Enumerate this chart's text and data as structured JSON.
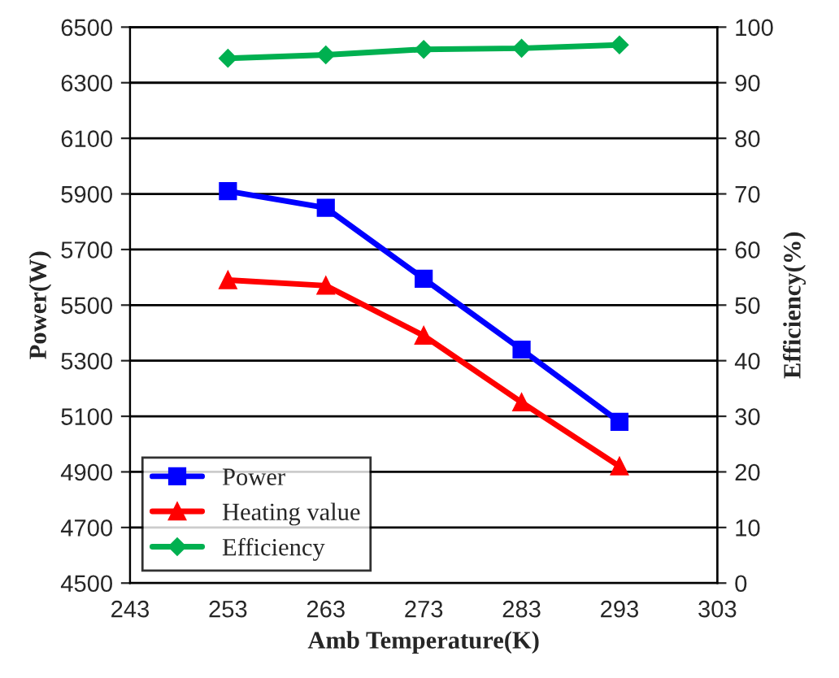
{
  "chart_data": {
    "type": "line",
    "xlabel": "Amb Temperature(K)",
    "ylabel": "Power(W)",
    "y2label": "Efficiency(%)",
    "x": [
      253,
      263,
      273,
      283,
      293
    ],
    "xlim": [
      243,
      303
    ],
    "xticks": [
      243,
      253,
      263,
      273,
      283,
      293,
      303
    ],
    "ylim": [
      4500,
      6500
    ],
    "yticks": [
      4500,
      4700,
      4900,
      5100,
      5300,
      5500,
      5700,
      5900,
      6100,
      6300,
      6500
    ],
    "y2lim": [
      0,
      100
    ],
    "y2ticks": [
      0,
      10,
      20,
      30,
      40,
      50,
      60,
      70,
      80,
      90,
      100
    ],
    "grid": "y",
    "legend": "bottom left",
    "series": [
      {
        "name": "Power",
        "color": "#0000ff",
        "marker": "square",
        "values": [
          5910,
          5850,
          5595,
          5340,
          5080
        ]
      },
      {
        "name": "Heating value",
        "color": "#ff0000",
        "marker": "triangle",
        "values": [
          5590,
          5570,
          5390,
          5150,
          4920
        ]
      },
      {
        "name": "Efficiency",
        "color": "#00b050",
        "marker": "diamond",
        "axis": "y2",
        "values": [
          94.4,
          95.0,
          96.0,
          96.2,
          96.8
        ]
      }
    ]
  }
}
